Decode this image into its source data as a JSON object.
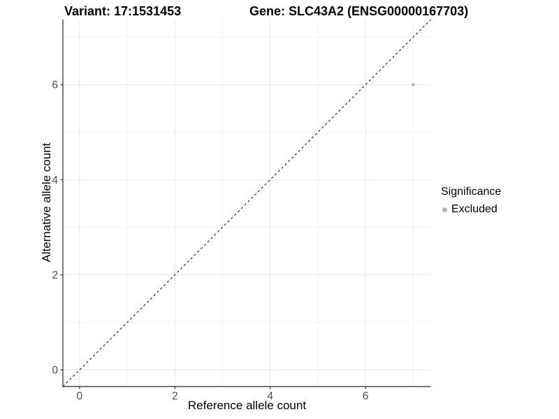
{
  "chart_data": {
    "type": "scatter",
    "title_variant": "Variant: 17:1531453",
    "title_gene": "Gene: SLC43A2 (ENSG00000167703)",
    "xlabel": "Reference allele count",
    "ylabel": "Alternative allele count",
    "xlim": [
      -0.35,
      7.37
    ],
    "ylim": [
      -0.35,
      7.37
    ],
    "x_major_ticks": [
      0,
      2,
      4,
      6
    ],
    "y_major_ticks": [
      0,
      2,
      4,
      6
    ],
    "x_minor_ticks": [
      1,
      3,
      5,
      7
    ],
    "y_minor_ticks": [
      1,
      3,
      5,
      7
    ],
    "grid": "major+minor",
    "points": [
      {
        "x": 7,
        "y": 6,
        "series": "Excluded"
      }
    ],
    "reference_line": {
      "kind": "identity y=x",
      "style": "dashed",
      "color": "#1a1a1a"
    },
    "legend": {
      "title": "Significance",
      "position": "right",
      "items": [
        {
          "label": "Excluded",
          "color": "#b5b5b5",
          "marker": "circle"
        }
      ]
    },
    "style": {
      "point_color": "#b5b5b5",
      "point_radius": 2.3,
      "legend_dot_diameter": 7,
      "grid_major_color": "#e6e6e6",
      "grid_minor_color": "#f2f2f2",
      "axis_line_color": "#474747",
      "tick_mark_color": "#333333",
      "tick_label_color": "#4d4d4d",
      "background": "#ffffff"
    }
  }
}
